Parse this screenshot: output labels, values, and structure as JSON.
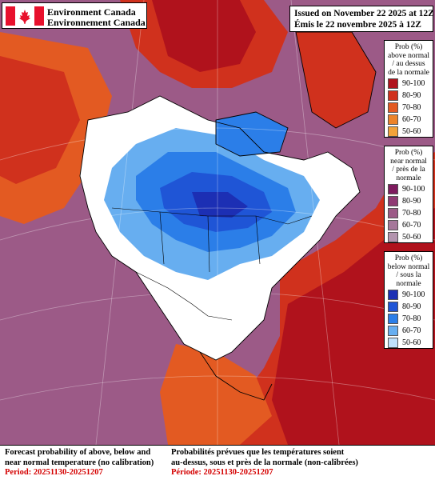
{
  "header": {
    "org_en": "Environment Canada",
    "org_fr": "Environnement Canada",
    "issued_en": "Issued on November 22 2025 at 12Z",
    "issued_fr": "Émis le 22 novembre 2025 à 12Z"
  },
  "legends": {
    "above": {
      "title": [
        "Prob (%)",
        "above normal",
        "/ au dessus",
        "de la normale"
      ],
      "items": [
        {
          "label": "90-100",
          "color": "#b0121c"
        },
        {
          "label": "80-90",
          "color": "#d0311d"
        },
        {
          "label": "70-80",
          "color": "#e35a22"
        },
        {
          "label": "60-70",
          "color": "#ec8329"
        },
        {
          "label": "50-60",
          "color": "#f2a33a"
        }
      ]
    },
    "near": {
      "title": [
        "Prob (%)",
        "near normal",
        "/ près de la",
        "normale"
      ],
      "items": [
        {
          "label": "90-100",
          "color": "#7e1b5e"
        },
        {
          "label": "80-90",
          "color": "#8f3a73"
        },
        {
          "label": "70-80",
          "color": "#9c5a87"
        },
        {
          "label": "60-70",
          "color": "#a5779a"
        },
        {
          "label": "50-60",
          "color": "#b394ae"
        }
      ]
    },
    "below": {
      "title": [
        "Prob (%)",
        "below normal",
        "/ sous la",
        "normale"
      ],
      "items": [
        {
          "label": "90-100",
          "color": "#1c2fb4"
        },
        {
          "label": "80-90",
          "color": "#1f55d6"
        },
        {
          "label": "70-80",
          "color": "#2b7ee8"
        },
        {
          "label": "60-70",
          "color": "#67aef0"
        },
        {
          "label": "50-60",
          "color": "#bfe0fb"
        }
      ]
    }
  },
  "footer": {
    "en_line1": "Forecast probability of above, below and",
    "en_line2": "near normal temperature (no calibration)",
    "en_period": "Period: 20251130-20251207",
    "fr_line1": "Probabilités prévues que les températures soient",
    "fr_line2": "au-dessus, sous et près de la normale (non-calibrées)",
    "fr_period": "Période: 20251130-20251207"
  },
  "map": {
    "colors": {
      "above_strong": "#b0121c",
      "above_mid": "#d0311d",
      "above_light": "#ec8329",
      "near": "#9c5a87",
      "below_strong": "#1f55d6",
      "below_mid": "#2b7ee8",
      "below_light": "#67aef0",
      "none": "#ffffff"
    }
  }
}
